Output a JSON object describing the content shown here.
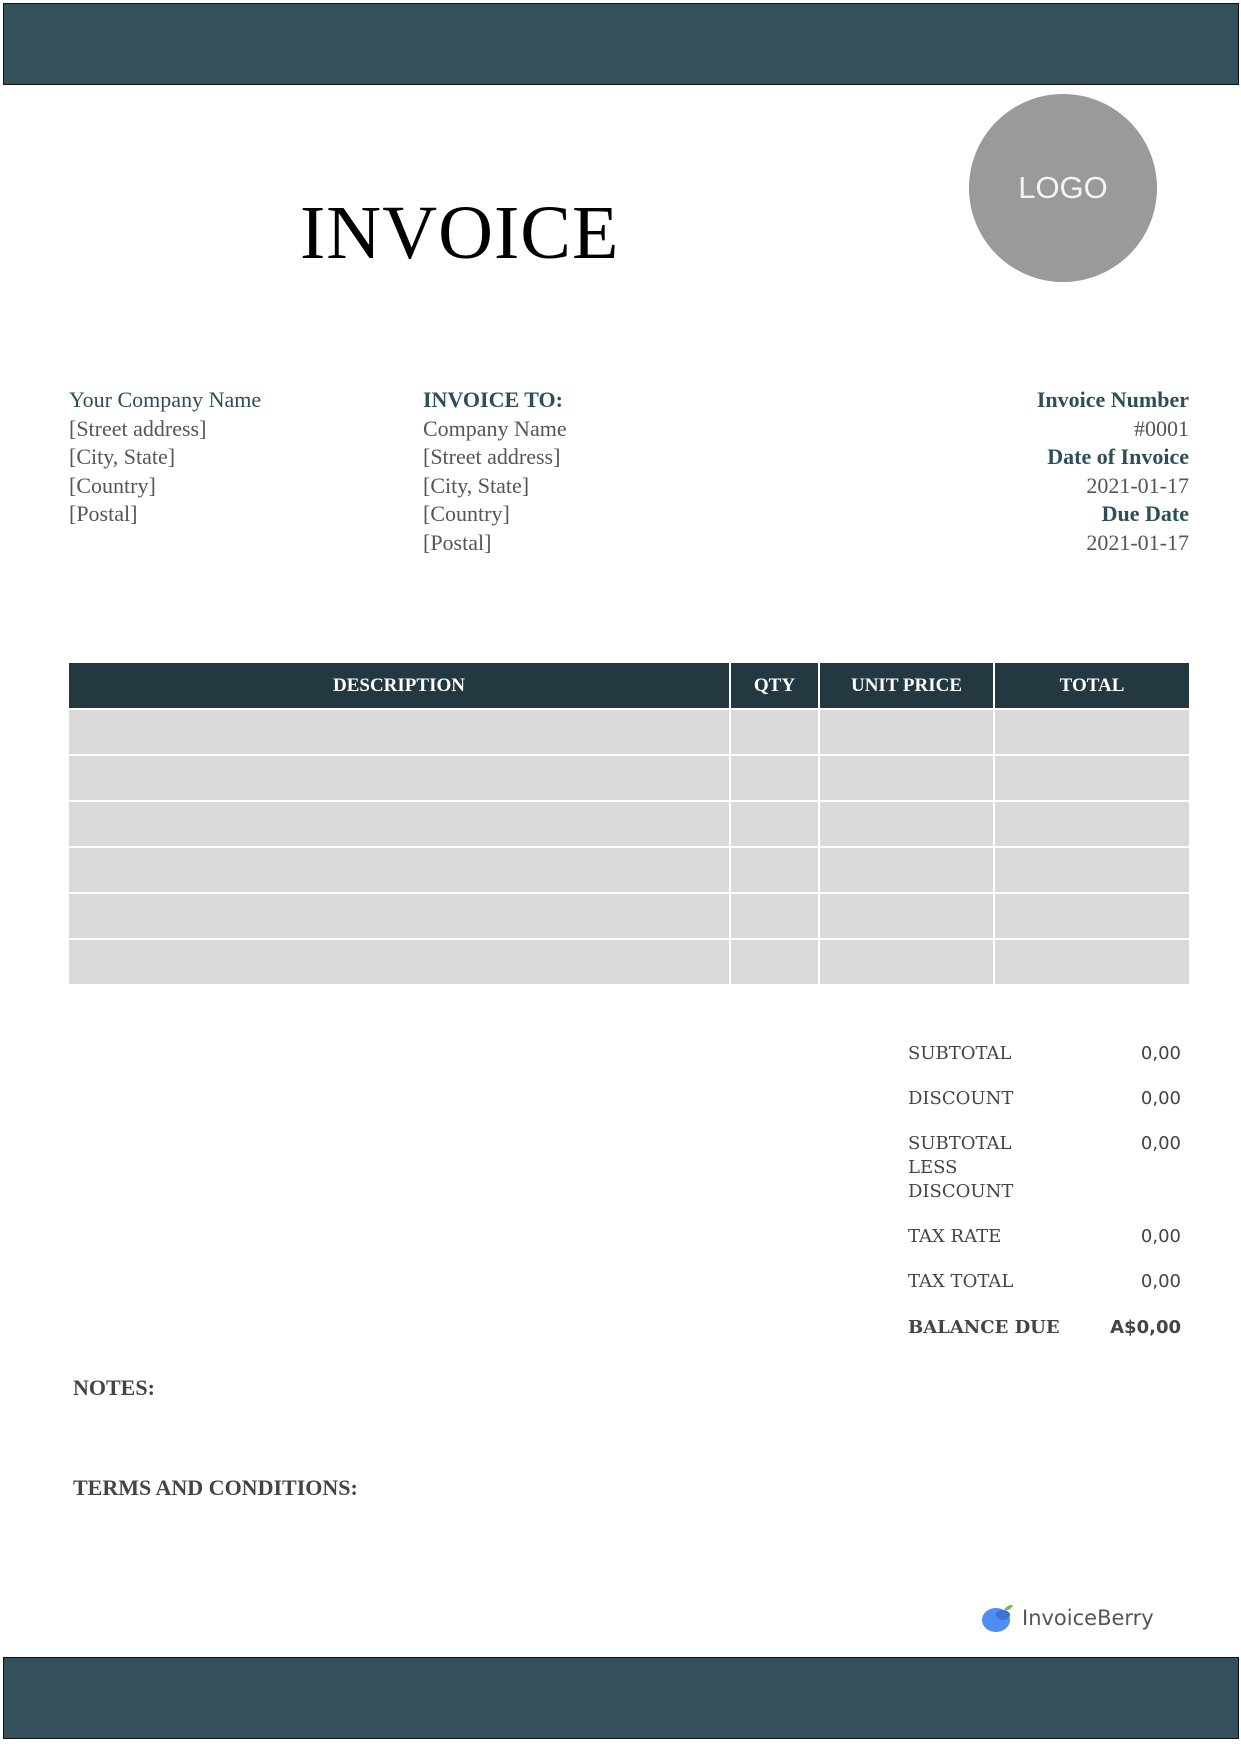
{
  "title": "INVOICE",
  "logo_text": "LOGO",
  "sender": {
    "name": "Your Company Name",
    "lines": [
      "[Street address]",
      "[City, State]",
      "[Country]",
      "[Postal]"
    ]
  },
  "recipient": {
    "heading": "INVOICE TO:",
    "lines": [
      "Company Name",
      "[Street address]",
      "[City, State]",
      "[Country]",
      "[Postal]"
    ]
  },
  "meta": {
    "invoice_number_label": "Invoice Number",
    "invoice_number": "#0001",
    "date_label": "Date of Invoice",
    "date": "2021-01-17",
    "due_label": "Due Date",
    "due": "2021-01-17"
  },
  "table": {
    "headers": [
      "DESCRIPTION",
      "QTY",
      "UNIT PRICE",
      "TOTAL"
    ],
    "row_count": 6
  },
  "summary": [
    {
      "label": "SUBTOTAL",
      "value": "0,00"
    },
    {
      "label": "DISCOUNT",
      "value": "0,00"
    },
    {
      "label": "SUBTOTAL LESS DISCOUNT",
      "value": "0,00"
    },
    {
      "label": "TAX RATE",
      "value": "0,00"
    },
    {
      "label": "TAX TOTAL",
      "value": "0,00"
    },
    {
      "label": "BALANCE DUE",
      "value": "A$0,00"
    }
  ],
  "notes_label": "NOTES:",
  "terms_label": "TERMS AND CONDITIONS:",
  "brand": "InvoiceBerry",
  "colors": {
    "bar": "#33505b",
    "table_header": "#233840",
    "heading": "#2d4f5c",
    "cell": "#d9d9d9"
  }
}
